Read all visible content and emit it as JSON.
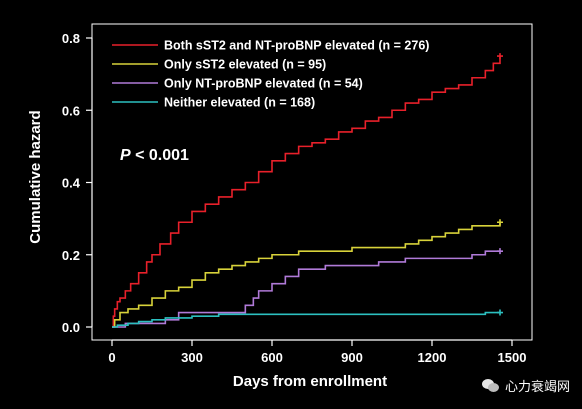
{
  "colors": {
    "background": "#000000",
    "axis": "#ffffff",
    "series": [
      "#e8202a",
      "#d8d23a",
      "#b07ad8",
      "#2cc0c0"
    ]
  },
  "watermark": {
    "text": "心力衰竭网",
    "icon": "wechat-icon"
  },
  "chart_data": {
    "type": "line",
    "title": "",
    "xlabel": "Days from enrollment",
    "ylabel": "Cumulative hazard",
    "xlim": [
      0,
      1500
    ],
    "ylim": [
      0,
      0.8
    ],
    "xticks": [
      0,
      300,
      600,
      900,
      1200,
      1500
    ],
    "xtick_labels": [
      "0",
      "300",
      "600",
      "900",
      "1200",
      "1500"
    ],
    "yticks": [
      0.0,
      0.2,
      0.4,
      0.6,
      0.8
    ],
    "ytick_labels": [
      "0.0",
      "0.2",
      "0.4",
      "0.6",
      "0.8"
    ],
    "annotation": "P < 0.001",
    "legend_position": "top",
    "grid": false,
    "series": [
      {
        "name": "Both sST2 and NT-proBNP elevated (n = 276)",
        "color": "#e8202a",
        "x": [
          0,
          5,
          10,
          20,
          30,
          50,
          70,
          100,
          130,
          150,
          180,
          220,
          250,
          300,
          350,
          400,
          450,
          500,
          550,
          600,
          650,
          700,
          750,
          800,
          850,
          900,
          950,
          1000,
          1050,
          1100,
          1150,
          1200,
          1250,
          1300,
          1350,
          1400,
          1430,
          1455
        ],
        "y": [
          0.0,
          0.03,
          0.05,
          0.07,
          0.08,
          0.1,
          0.12,
          0.15,
          0.18,
          0.2,
          0.23,
          0.26,
          0.29,
          0.32,
          0.34,
          0.36,
          0.38,
          0.4,
          0.43,
          0.46,
          0.48,
          0.5,
          0.51,
          0.52,
          0.54,
          0.55,
          0.57,
          0.58,
          0.6,
          0.62,
          0.63,
          0.65,
          0.66,
          0.67,
          0.69,
          0.71,
          0.73,
          0.75
        ]
      },
      {
        "name": "Only sST2 elevated (n = 95)",
        "color": "#d8d23a",
        "x": [
          0,
          10,
          30,
          60,
          100,
          150,
          200,
          250,
          300,
          350,
          400,
          450,
          500,
          550,
          600,
          700,
          800,
          900,
          1000,
          1100,
          1150,
          1200,
          1250,
          1300,
          1350,
          1400,
          1455
        ],
        "y": [
          0.0,
          0.02,
          0.04,
          0.05,
          0.06,
          0.08,
          0.1,
          0.11,
          0.13,
          0.15,
          0.16,
          0.17,
          0.18,
          0.19,
          0.2,
          0.21,
          0.21,
          0.22,
          0.22,
          0.23,
          0.24,
          0.25,
          0.26,
          0.27,
          0.28,
          0.28,
          0.29
        ]
      },
      {
        "name": "Only NT-proBNP elevated (n = 54)",
        "color": "#b07ad8",
        "x": [
          0,
          50,
          100,
          150,
          200,
          250,
          300,
          350,
          400,
          450,
          500,
          530,
          550,
          600,
          650,
          700,
          800,
          900,
          1000,
          1100,
          1200,
          1300,
          1350,
          1400,
          1455
        ],
        "y": [
          0.0,
          0.01,
          0.01,
          0.01,
          0.02,
          0.04,
          0.04,
          0.04,
          0.04,
          0.04,
          0.06,
          0.08,
          0.1,
          0.12,
          0.14,
          0.16,
          0.17,
          0.17,
          0.18,
          0.19,
          0.19,
          0.19,
          0.2,
          0.21,
          0.21
        ]
      },
      {
        "name": "Neither elevated (n = 168)",
        "color": "#2cc0c0",
        "x": [
          0,
          20,
          60,
          100,
          150,
          200,
          300,
          400,
          500,
          600,
          800,
          1000,
          1200,
          1400,
          1455
        ],
        "y": [
          0.0,
          0.005,
          0.01,
          0.015,
          0.02,
          0.025,
          0.03,
          0.035,
          0.035,
          0.035,
          0.035,
          0.035,
          0.035,
          0.04,
          0.04
        ]
      }
    ]
  }
}
